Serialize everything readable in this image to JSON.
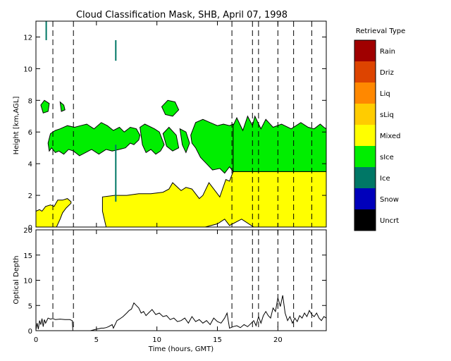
{
  "title": "Cloud Classification Mask, SHB, April 07, 1998",
  "legend": {
    "title": "Retrieval Type",
    "items": [
      {
        "label": "Rain",
        "color": "#a00000"
      },
      {
        "label": "Driz",
        "color": "#dd4400"
      },
      {
        "label": "Liq",
        "color": "#ff8800"
      },
      {
        "label": "sLiq",
        "color": "#ffcc00"
      },
      {
        "label": "Mixed",
        "color": "#ffff00"
      },
      {
        "label": "sIce",
        "color": "#00ee00"
      },
      {
        "label": "Ice",
        "color": "#007766"
      },
      {
        "label": "Snow",
        "color": "#0000bb"
      },
      {
        "label": "Uncrt",
        "color": "#000000"
      }
    ]
  },
  "chart_data": [
    {
      "type": "heatmap",
      "title": "Cloud Classification Mask, SHB, April 07, 1998",
      "ylabel": "Height [km,AGL]",
      "xlim": [
        0,
        24
      ],
      "ylim": [
        0,
        13
      ],
      "yticks": [
        0,
        2,
        4,
        6,
        8,
        10,
        12
      ],
      "xticks": [
        0,
        5,
        10,
        15,
        20
      ],
      "dashed_lines_hours": [
        1.4,
        3.1,
        16.2,
        17.9,
        18.4,
        20.0,
        21.3,
        22.8
      ],
      "regions": [
        {
          "class": "Mixed",
          "color": "#ffff00",
          "x": [
            0,
            0.3,
            0.5,
            0.8,
            1.2,
            1.5,
            1.8,
            2.2,
            2.6,
            2.9,
            2.9,
            2.5,
            2.2,
            2.0,
            1.7,
            1.3,
            1.0,
            0.6,
            0.2,
            0
          ],
          "y": [
            1.0,
            1.1,
            1.0,
            1.3,
            1.4,
            1.3,
            1.7,
            1.7,
            1.8,
            1.6,
            1.5,
            1.2,
            0.9,
            0.5,
            0,
            0,
            0,
            0,
            0,
            0
          ]
        },
        {
          "class": "Mixed",
          "color": "#ffff00",
          "x": [
            5.5,
            5.5,
            6.5,
            7.5,
            8.5,
            9.5,
            10.5,
            11.0,
            11.3,
            12.0,
            12.4,
            12.9,
            13.5,
            13.8,
            14.3,
            14.9,
            15.2,
            15.7,
            16.0,
            16.2,
            16.3,
            24,
            24,
            18,
            17,
            16.5,
            16.0,
            15.6,
            15.0,
            14.0,
            12.0,
            11.0,
            10.0,
            9.5,
            9.0,
            8.5,
            8.0,
            7.0,
            6.0,
            5.8
          ],
          "y": [
            1.0,
            1.9,
            2.0,
            2.0,
            2.1,
            2.1,
            2.2,
            2.4,
            2.8,
            2.3,
            2.5,
            2.4,
            1.8,
            2.0,
            2.8,
            2.2,
            1.9,
            3.0,
            2.9,
            3.3,
            3.5,
            3.5,
            0,
            0,
            0.5,
            0.3,
            0.1,
            0.5,
            0.2,
            0,
            0,
            0,
            0,
            0,
            0,
            0,
            0,
            0,
            0,
            0
          ]
        },
        {
          "class": "sIce",
          "color": "#00ee00",
          "x": [
            16.3,
            16.3,
            16.6,
            17.1,
            17.5,
            17.9,
            18.1,
            18.6,
            19.0,
            19.6,
            20.3,
            21.1,
            21.9,
            22.5,
            23.0,
            23.5,
            23.8,
            24,
            24,
            23.0,
            22.0,
            21.0,
            20.0,
            19.0,
            18.0,
            17.0
          ],
          "y": [
            3.5,
            6.4,
            6.9,
            6.1,
            7.0,
            6.4,
            7.0,
            6.2,
            6.8,
            6.3,
            6.5,
            6.2,
            6.6,
            6.3,
            6.2,
            6.5,
            6.3,
            6.2,
            3.5,
            3.5,
            3.5,
            3.5,
            3.5,
            3.5,
            3.5,
            3.5
          ],
          "note": "upper cloud layer"
        },
        {
          "class": "sIce",
          "color": "#00ee00",
          "x": [
            12.8,
            13.2,
            13.8,
            14.4,
            15.0,
            15.5,
            16.0,
            16.3,
            16.3,
            16.0,
            15.6,
            15.2,
            14.6,
            14.1,
            13.6,
            13.2,
            12.9
          ],
          "y": [
            5.8,
            6.6,
            6.8,
            6.6,
            6.4,
            6.5,
            6.4,
            6.5,
            3.5,
            3.8,
            3.4,
            3.7,
            3.6,
            4.0,
            4.4,
            5.0,
            5.3
          ]
        },
        {
          "class": "sIce",
          "color": "#00ee00",
          "x": [
            1.0,
            1.2,
            1.6,
            2.0,
            2.6,
            3.2,
            3.7,
            4.2,
            4.8,
            5.4,
            5.9,
            6.4,
            6.9,
            7.3,
            7.8,
            8.3,
            8.6,
            8.5,
            8.1,
            7.8,
            7.4,
            6.9,
            6.3,
            5.8,
            5.2,
            4.6,
            4.1,
            3.6,
            3.1,
            2.7,
            2.3,
            1.9,
            1.6,
            1.3,
            1.1
          ],
          "y": [
            5.3,
            5.9,
            6.1,
            6.2,
            6.4,
            6.3,
            6.4,
            6.5,
            6.2,
            6.6,
            6.4,
            6.1,
            6.3,
            6.0,
            6.3,
            6.2,
            5.8,
            5.5,
            5.2,
            5.3,
            5.0,
            4.9,
            4.8,
            4.9,
            4.6,
            4.9,
            4.7,
            4.5,
            4.8,
            4.9,
            4.6,
            4.8,
            4.7,
            5.0,
            4.8
          ]
        },
        {
          "class": "sIce",
          "color": "#00ee00",
          "x": [
            8.6,
            9.0,
            9.8,
            10.2,
            10.6,
            10.3,
            9.9,
            9.5,
            9.1,
            8.8
          ],
          "y": [
            6.3,
            6.5,
            6.2,
            6.0,
            5.2,
            4.8,
            4.6,
            4.9,
            4.7,
            5.2
          ]
        },
        {
          "class": "sIce",
          "color": "#00ee00",
          "x": [
            10.5,
            11.0,
            11.6,
            11.8,
            11.3,
            10.8
          ],
          "y": [
            5.9,
            6.3,
            5.8,
            5.0,
            4.8,
            5.1
          ]
        },
        {
          "class": "sIce",
          "color": "#00ee00",
          "x": [
            11.9,
            12.4,
            12.7,
            12.4,
            12.1
          ],
          "y": [
            6.2,
            6.0,
            5.3,
            4.7,
            5.2
          ]
        },
        {
          "class": "sIce",
          "color": "#00ee00",
          "x": [
            10.4,
            10.9,
            11.5,
            11.8,
            11.3,
            10.7
          ],
          "y": [
            7.6,
            8.0,
            7.9,
            7.4,
            7.0,
            7.1
          ]
        },
        {
          "class": "sIce",
          "color": "#00ee00",
          "x": [
            0.4,
            0.7,
            1.1,
            1.0,
            0.6
          ],
          "y": [
            7.7,
            8.0,
            7.8,
            7.3,
            7.2
          ]
        },
        {
          "class": "sIce",
          "color": "#00ee00",
          "x": [
            2.0,
            2.3,
            2.4,
            2.1
          ],
          "y": [
            7.9,
            7.7,
            7.4,
            7.3
          ]
        }
      ]
    },
    {
      "type": "line",
      "ylabel": "Optical Depth",
      "xlabel": "Time (hours, GMT)",
      "xlim": [
        0,
        24
      ],
      "ylim": [
        0,
        20
      ],
      "xticks": [
        0,
        5,
        10,
        15,
        20
      ],
      "yticks": [
        0,
        5,
        10,
        15,
        20
      ],
      "dashed_lines_hours": [
        1.4,
        3.1,
        16.2,
        17.9,
        18.4,
        20.0,
        21.3,
        22.8
      ],
      "series": [
        {
          "x": [
            0.0,
            0.1,
            0.2,
            0.3,
            0.4,
            0.5,
            0.6,
            0.7,
            0.8,
            1.0,
            1.2,
            1.4,
            1.6,
            2.0,
            2.4,
            2.8,
            3.0,
            3.05,
            3.8,
            4.0,
            4.2,
            4.5,
            5.0,
            5.4,
            5.6,
            5.8,
            6.0,
            6.3,
            6.4,
            6.6,
            6.7,
            6.9,
            7.2,
            7.5,
            7.7,
            7.9,
            8.1,
            8.3,
            8.5,
            8.7,
            8.9,
            9.1,
            9.3,
            9.6,
            9.9,
            10.2,
            10.5,
            10.8,
            11.1,
            11.4,
            11.7,
            12.0,
            12.3,
            12.6,
            12.9,
            13.2,
            13.5,
            13.8,
            14.1,
            14.4,
            14.7,
            15.0,
            15.3,
            15.6,
            15.8,
            15.9,
            16.0,
            16.3,
            16.6,
            16.9,
            17.2,
            17.5,
            17.8,
            18.0,
            18.2,
            18.4,
            18.6,
            18.8,
            19.0,
            19.2,
            19.4,
            19.6,
            19.8,
            20.0,
            20.2,
            20.4,
            20.6,
            20.8,
            21.0,
            21.2,
            21.4,
            21.6,
            21.8,
            22.0,
            22.2,
            22.4,
            22.6,
            22.8,
            23.0,
            23.2,
            23.4,
            23.6,
            23.8,
            24.0
          ],
          "y": [
            0.2,
            1.5,
            0.3,
            2.0,
            1.2,
            2.4,
            0.8,
            2.2,
            1.5,
            2.5,
            2.3,
            2.4,
            2.2,
            2.3,
            2.2,
            2.2,
            2.0,
            0.0,
            0.0,
            0.0,
            0.0,
            0.0,
            0.3,
            0.5,
            0.5,
            0.6,
            0.8,
            1.2,
            0.5,
            1.5,
            2.0,
            2.3,
            2.8,
            3.5,
            4.0,
            4.3,
            5.5,
            5.0,
            4.5,
            3.5,
            3.8,
            3.0,
            3.5,
            4.2,
            3.2,
            3.5,
            2.8,
            3.0,
            2.2,
            2.5,
            1.8,
            2.0,
            2.5,
            1.5,
            2.8,
            1.8,
            2.2,
            1.5,
            2.0,
            1.2,
            2.5,
            1.8,
            1.5,
            2.5,
            3.5,
            2.0,
            0.5,
            0.8,
            1.0,
            0.6,
            1.2,
            0.8,
            1.5,
            2.0,
            1.0,
            2.8,
            1.5,
            3.0,
            3.8,
            3.0,
            2.5,
            4.5,
            3.8,
            6.5,
            4.8,
            7.0,
            3.5,
            2.0,
            2.8,
            1.5,
            2.5,
            1.8,
            3.0,
            2.5,
            3.5,
            2.8,
            4.0,
            3.2,
            2.8,
            3.5,
            2.5,
            2.0,
            2.8,
            2.5
          ]
        }
      ]
    }
  ]
}
